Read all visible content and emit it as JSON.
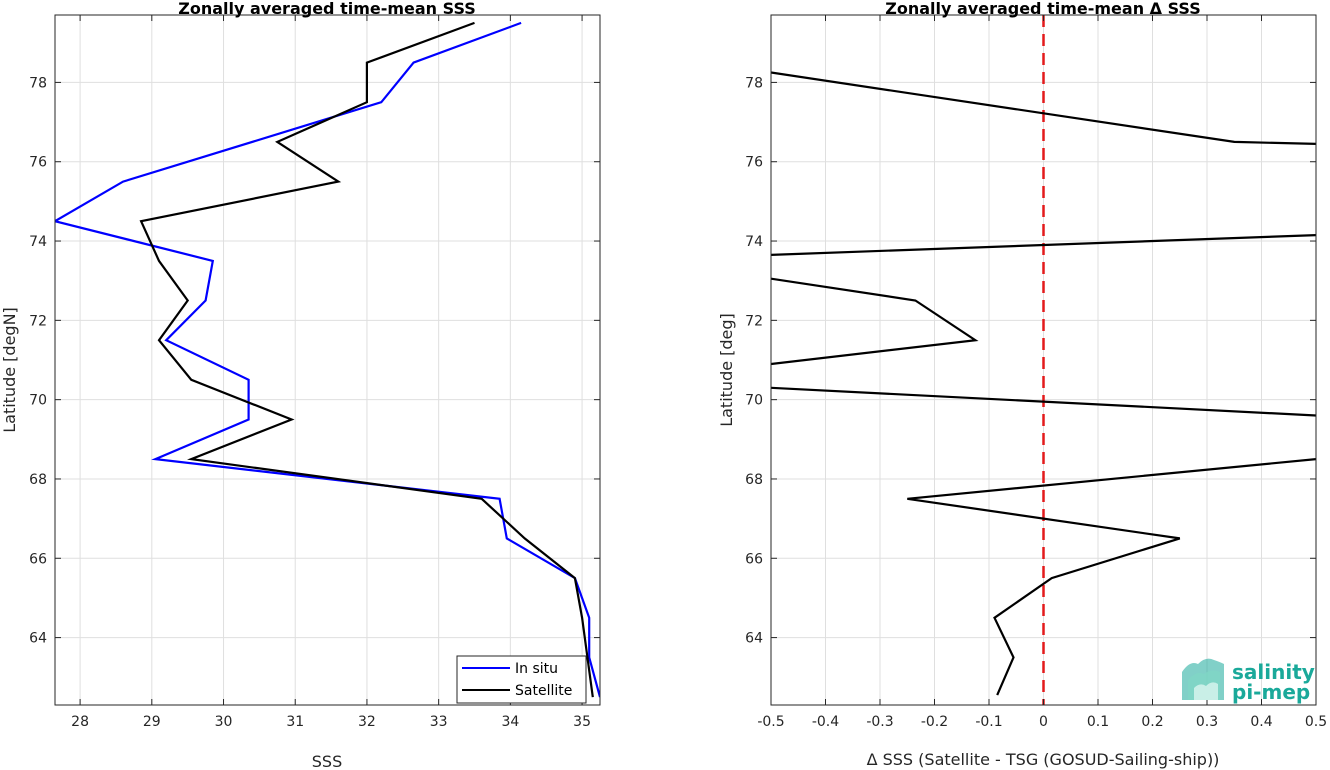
{
  "chart_data": [
    {
      "type": "line",
      "title": "Zonally averaged time-mean SSS",
      "xlabel": "SSS",
      "ylabel": "Latitude [degN]",
      "xlim": [
        27.65,
        35.25
      ],
      "ylim": [
        62.3,
        79.7
      ],
      "xticks": [
        28,
        29,
        30,
        31,
        32,
        33,
        34,
        35
      ],
      "yticks": [
        64,
        66,
        68,
        70,
        72,
        74,
        76,
        78
      ],
      "grid": true,
      "legend_placement": "bottom-right",
      "series": [
        {
          "name": "In situ",
          "color": "#0000ff",
          "x": [
            34.15,
            32.65,
            32.2,
            28.6,
            27.65,
            29.85,
            29.75,
            29.2,
            30.35,
            30.35,
            29.05,
            33.85,
            33.95,
            34.9,
            35.1,
            35.1,
            35.25
          ],
          "y": [
            79.5,
            78.5,
            77.5,
            75.5,
            74.5,
            73.5,
            72.5,
            71.5,
            70.5,
            69.5,
            68.5,
            67.5,
            66.5,
            65.5,
            64.5,
            63.5,
            62.5
          ]
        },
        {
          "name": "Satellite",
          "color": "#000000",
          "x": [
            33.5,
            32.0,
            32.0,
            30.75,
            31.6,
            28.85,
            29.1,
            29.5,
            29.1,
            29.55,
            30.95,
            29.55,
            33.6,
            34.2,
            34.9,
            35.0,
            35.15
          ],
          "y": [
            79.5,
            78.5,
            77.5,
            76.5,
            75.5,
            74.5,
            73.5,
            72.5,
            71.5,
            70.5,
            69.5,
            68.5,
            67.5,
            66.5,
            65.5,
            64.5,
            62.5
          ]
        }
      ]
    },
    {
      "type": "line",
      "title": "Zonally averaged time-mean Δ SSS",
      "xlabel": "Δ SSS (Satellite - TSG (GOSUD-Sailing-ship))",
      "ylabel": "Latitude [deg]",
      "xlim": [
        -0.5,
        0.5
      ],
      "ylim": [
        62.3,
        79.7
      ],
      "xticks": [
        -0.5,
        -0.4,
        -0.3,
        -0.2,
        -0.1,
        0,
        0.1,
        0.2,
        0.3,
        0.4,
        0.5
      ],
      "xtick_labels": [
        "-0.5",
        "-0.4",
        "-0.3",
        "-0.2",
        "-0.1",
        "0",
        "0.1",
        "0.2",
        "0.3",
        "0.4",
        "0.5"
      ],
      "yticks": [
        64,
        66,
        68,
        70,
        72,
        74,
        76,
        78
      ],
      "grid": true,
      "reference_line": {
        "x": 0,
        "color": "#e31a1c",
        "style": "dashed"
      },
      "series": [
        {
          "color": "#000000",
          "x": [
            -0.5,
            0.35,
            0.5
          ],
          "y": [
            78.25,
            76.5,
            76.45
          ]
        },
        {
          "color": "#000000",
          "x": [
            -0.5,
            0.5
          ],
          "y": [
            73.65,
            74.15
          ]
        },
        {
          "color": "#000000",
          "x": [
            -0.5,
            -0.235,
            -0.125,
            -0.5
          ],
          "y": [
            73.05,
            72.5,
            71.5,
            70.9
          ]
        },
        {
          "color": "#000000",
          "x": [
            -0.5,
            0.5
          ],
          "y": [
            70.3,
            69.6
          ]
        },
        {
          "color": "#000000",
          "x": [
            0.5,
            -0.25,
            0.25,
            0.015,
            -0.09,
            -0.055,
            -0.085
          ],
          "y": [
            68.5,
            67.5,
            66.5,
            65.5,
            64.5,
            63.5,
            62.55
          ]
        }
      ]
    }
  ],
  "logo": {
    "line1": "salinity",
    "line2": "pi-mep",
    "color": "#1aa99a"
  }
}
